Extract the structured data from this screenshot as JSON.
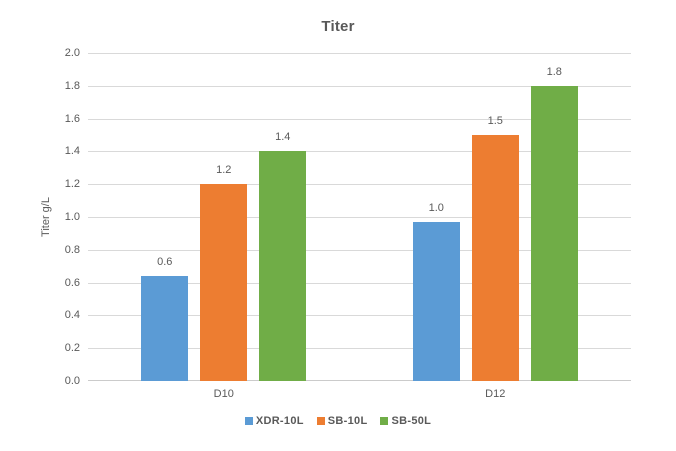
{
  "chart_data": {
    "type": "bar",
    "title": "Titer",
    "ylabel": "Titer g/L",
    "xlabel": "",
    "ylim": [
      0,
      2.0
    ],
    "ytick_step": 0.2,
    "ytick_labels": [
      "0.0",
      "0.2",
      "0.4",
      "0.6",
      "0.8",
      "1.0",
      "1.2",
      "1.4",
      "1.6",
      "1.8",
      "2.0"
    ],
    "grid": true,
    "legend_position": "bottom",
    "categories": [
      "D10",
      "D12"
    ],
    "series": [
      {
        "name": "XDR-10L",
        "color": "#5B9BD5",
        "values": [
          0.6,
          1.0
        ],
        "data_labels": [
          "0.6",
          "1.0"
        ],
        "drawn_values": [
          0.64,
          0.97
        ]
      },
      {
        "name": "SB-10L",
        "color": "#ED7D31",
        "values": [
          1.2,
          1.5
        ],
        "data_labels": [
          "1.2",
          "1.5"
        ],
        "drawn_values": [
          1.2,
          1.5
        ]
      },
      {
        "name": "SB-50L",
        "color": "#70AD47",
        "values": [
          1.4,
          1.8
        ],
        "data_labels": [
          "1.4",
          "1.8"
        ],
        "drawn_values": [
          1.4,
          1.8
        ]
      }
    ]
  },
  "styles": {
    "text_color": "#595959",
    "gridline_color": "#D9D9D9",
    "axis_line_color": "#CBCBCB",
    "background": "#FFFFFF"
  }
}
